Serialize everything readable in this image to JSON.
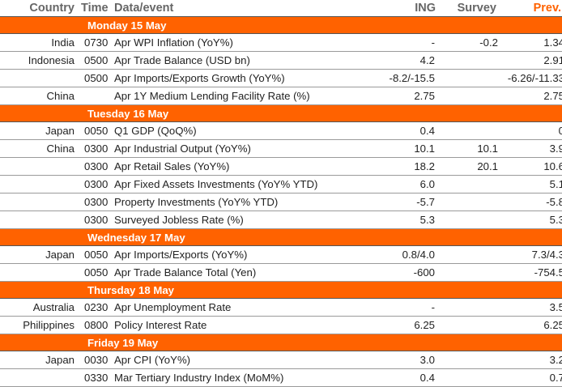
{
  "header": {
    "country": "Country",
    "time": "Time",
    "event": "Data/event",
    "ing": "ING",
    "survey": "Survey",
    "prev": "Prev."
  },
  "days": [
    {
      "label": "Monday 15 May",
      "rows": [
        {
          "country": "India",
          "time": "0730",
          "event": "Apr WPI Inflation (YoY%)",
          "ing": "-",
          "survey": "-0.2",
          "prev": "1.34"
        },
        {
          "country": "Indonesia",
          "time": "0500",
          "event": "Apr Trade Balance (USD bn)",
          "ing": "4.2",
          "survey": "",
          "prev": "2.91"
        },
        {
          "country": "",
          "time": "0500",
          "event": "Apr Imports/Exports Growth (YoY%)",
          "ing": "-8.2/-15.5",
          "survey": "",
          "prev": "-6.26/-11.33"
        },
        {
          "country": "China",
          "time": "",
          "event": "Apr 1Y Medium Lending Facility Rate (%)",
          "ing": "2.75",
          "survey": "",
          "prev": "2.75"
        }
      ]
    },
    {
      "label": "Tuesday 16 May",
      "rows": [
        {
          "country": "Japan",
          "time": "0050",
          "event": "Q1 GDP (QoQ%)",
          "ing": "0.4",
          "survey": "",
          "prev": "0"
        },
        {
          "country": "China",
          "time": "0300",
          "event": "Apr Industrial Output (YoY%)",
          "ing": "10.1",
          "survey": "10.1",
          "prev": "3.9"
        },
        {
          "country": "",
          "time": "0300",
          "event": "Apr Retail Sales (YoY%)",
          "ing": "18.2",
          "survey": "20.1",
          "prev": "10.6"
        },
        {
          "country": "",
          "time": "0300",
          "event": "Apr Fixed Assets Investments (YoY% YTD)",
          "ing": "6.0",
          "survey": "",
          "prev": "5.1"
        },
        {
          "country": "",
          "time": "0300",
          "event": "Property Investments (YoY% YTD)",
          "ing": "-5.7",
          "survey": "",
          "prev": "-5.8"
        },
        {
          "country": "",
          "time": "0300",
          "event": "Surveyed Jobless Rate (%)",
          "ing": "5.3",
          "survey": "",
          "prev": "5.3"
        }
      ]
    },
    {
      "label": "Wednesday 17 May",
      "rows": [
        {
          "country": "Japan",
          "time": "0050",
          "event": "Apr Imports/Exports (YoY%)",
          "ing": "0.8/4.0",
          "survey": "",
          "prev": "7.3/4.3"
        },
        {
          "country": "",
          "time": "0050",
          "event": "Apr Trade Balance Total (Yen)",
          "ing": "-600",
          "survey": "",
          "prev": "-754.5"
        }
      ]
    },
    {
      "label": "Thursday 18 May",
      "rows": [
        {
          "country": "Australia",
          "time": "0230",
          "event": "Apr Unemployment Rate",
          "ing": "-",
          "survey": "",
          "prev": "3.5"
        },
        {
          "country": "Philippines",
          "time": "0800",
          "event": "Policy Interest Rate",
          "ing": "6.25",
          "survey": "",
          "prev": "6.25"
        }
      ]
    },
    {
      "label": "Friday 19 May",
      "rows": [
        {
          "country": "Japan",
          "time": "0030",
          "event": "Apr CPI (YoY%)",
          "ing": "3.0",
          "survey": "",
          "prev": "3.2"
        },
        {
          "country": "",
          "time": "0330",
          "event": "Mar Tertiary Industry Index (MoM%)",
          "ing": "0.4",
          "survey": "",
          "prev": "0.7"
        }
      ]
    }
  ]
}
